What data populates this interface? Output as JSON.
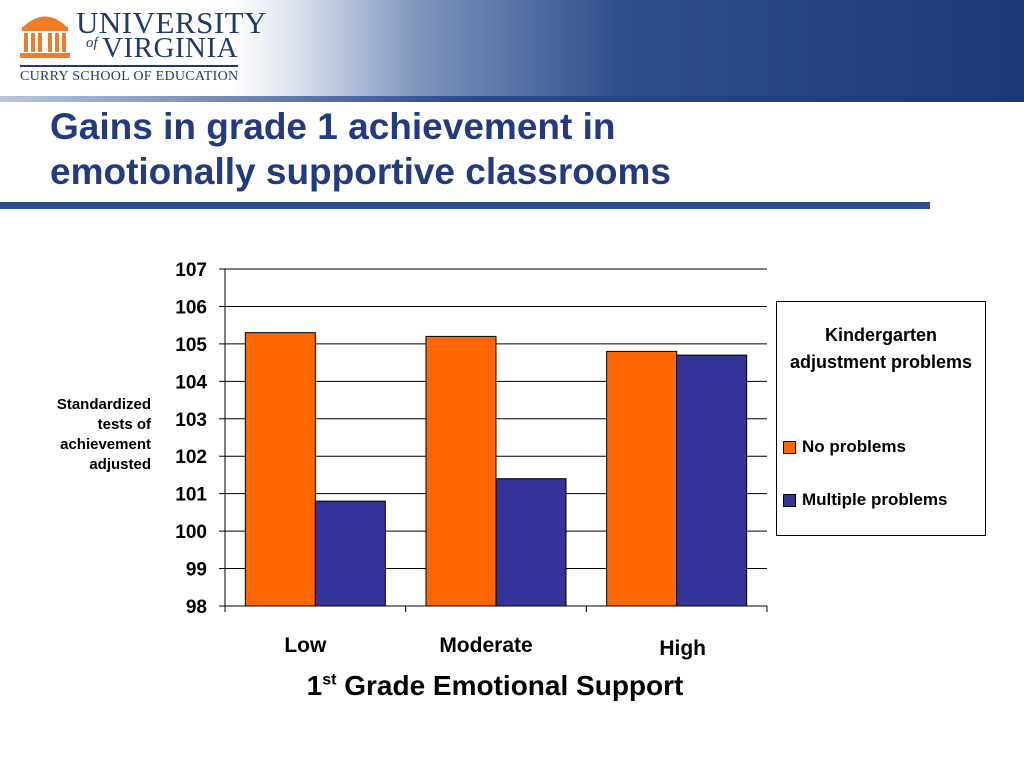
{
  "header": {
    "logo": {
      "university": "UNIVERSITY",
      "of": "of",
      "virginia": "VIRGINIA",
      "school": "CURRY SCHOOL OF EDUCATION"
    },
    "title_line1": "Gains in grade 1 achievement in",
    "title_line2": "emotionally supportive classrooms"
  },
  "colors": {
    "no_problems": "#ff6600",
    "multiple_problems": "#333399",
    "title": "#213a80"
  },
  "chart_data": {
    "type": "bar",
    "title": "",
    "ylabel": "Standardized tests of achievement adjusted",
    "xlabel": {
      "main": "1",
      "sup": "st",
      "rest": " Grade Emotional Support"
    },
    "categories": [
      "Low",
      "Moderate",
      "High"
    ],
    "ylim": [
      98,
      107
    ],
    "yticks": [
      98,
      99,
      100,
      101,
      102,
      103,
      104,
      105,
      106,
      107
    ],
    "grid": true,
    "legend": {
      "title": "Kindergarten adjustment problems",
      "placement": "right"
    },
    "series": [
      {
        "name": "No problems",
        "color": "#ff6600",
        "values": [
          105.3,
          105.2,
          104.8
        ]
      },
      {
        "name": "Multiple problems",
        "color": "#333399",
        "values": [
          100.8,
          101.4,
          104.7
        ]
      }
    ]
  }
}
